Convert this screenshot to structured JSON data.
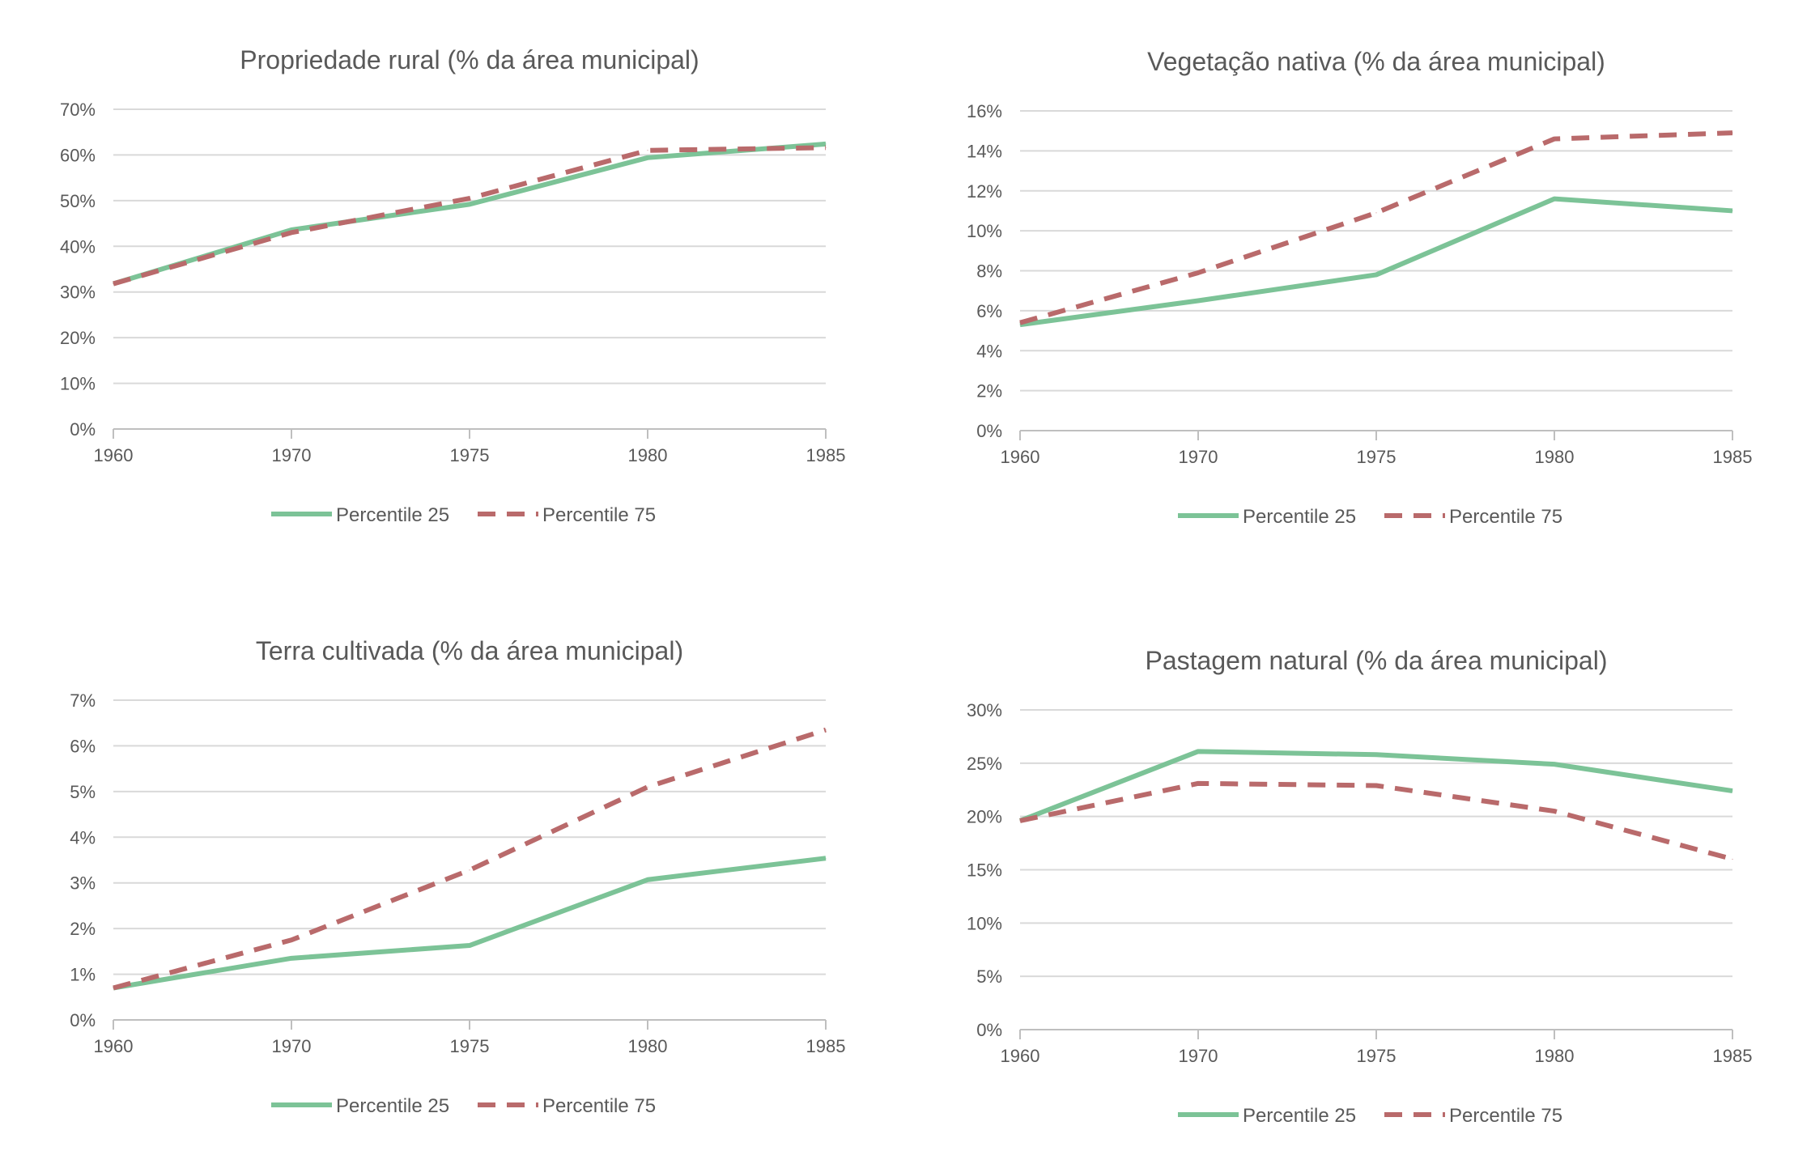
{
  "colors": {
    "p25": "#7cc397",
    "p75": "#b96a6b",
    "grid": "#d9d9d9",
    "text": "#595959"
  },
  "chart_data": [
    {
      "type": "line",
      "title": "Propriedade rural (% da área municipal)",
      "x": [
        "1960",
        "1970",
        "1975",
        "1980",
        "1985"
      ],
      "yticks": [
        "0%",
        "10%",
        "20%",
        "30%",
        "40%",
        "50%",
        "60%",
        "70%"
      ],
      "ylim": [
        0,
        70
      ],
      "grid": true,
      "legend_position": "bottom",
      "series": [
        {
          "name": "Percentile 25",
          "style": "solid",
          "values": [
            31.8,
            43.6,
            49.2,
            59.4,
            62.4
          ]
        },
        {
          "name": "Percentile 75",
          "style": "dashed",
          "values": [
            31.8,
            43.0,
            50.5,
            61.0,
            61.6
          ]
        }
      ]
    },
    {
      "type": "line",
      "title": "Vegetação nativa (% da área municipal)",
      "x": [
        "1960",
        "1970",
        "1975",
        "1980",
        "1985"
      ],
      "yticks": [
        "0%",
        "2%",
        "4%",
        "6%",
        "8%",
        "10%",
        "12%",
        "14%",
        "16%"
      ],
      "ylim": [
        0,
        16
      ],
      "grid": true,
      "legend_position": "bottom",
      "series": [
        {
          "name": "Percentile 25",
          "style": "solid",
          "values": [
            5.3,
            6.5,
            7.8,
            11.6,
            11.0
          ]
        },
        {
          "name": "Percentile 75",
          "style": "dashed",
          "values": [
            5.4,
            7.9,
            10.9,
            14.6,
            14.9
          ]
        }
      ]
    },
    {
      "type": "line",
      "title": "Terra cultivada (% da área municipal)",
      "x": [
        "1960",
        "1970",
        "1975",
        "1980",
        "1985"
      ],
      "yticks": [
        "0%",
        "1%",
        "2%",
        "3%",
        "4%",
        "5%",
        "6%",
        "7%"
      ],
      "ylim": [
        0,
        7
      ],
      "grid": true,
      "legend_position": "bottom",
      "series": [
        {
          "name": "Percentile 25",
          "style": "solid",
          "values": [
            0.7,
            1.35,
            1.63,
            3.07,
            3.54
          ]
        },
        {
          "name": "Percentile 75",
          "style": "dashed",
          "values": [
            0.7,
            1.75,
            3.28,
            5.1,
            6.35
          ]
        }
      ]
    },
    {
      "type": "line",
      "title": "Pastagem natural (% da área municipal)",
      "x": [
        "1960",
        "1970",
        "1975",
        "1980",
        "1985"
      ],
      "yticks": [
        "0%",
        "5%",
        "10%",
        "15%",
        "20%",
        "25%",
        "30%"
      ],
      "ylim": [
        0,
        30
      ],
      "grid": true,
      "legend_position": "bottom",
      "series": [
        {
          "name": "Percentile 25",
          "style": "solid",
          "values": [
            19.6,
            26.1,
            25.8,
            24.9,
            22.4
          ]
        },
        {
          "name": "Percentile 75",
          "style": "dashed",
          "values": [
            19.6,
            23.1,
            22.9,
            20.5,
            16.0
          ]
        }
      ]
    }
  ]
}
